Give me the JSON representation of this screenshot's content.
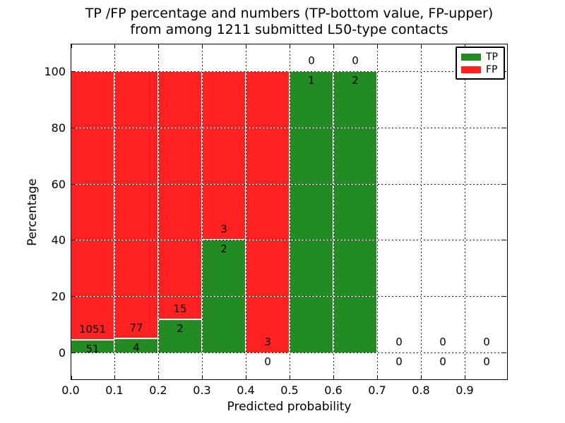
{
  "figure": {
    "title_line1": "TP /FP percentage and numbers (TP-bottom value, FP-upper)",
    "title_line2": "from among 1211 submitted L50-type contacts"
  },
  "chart_data": {
    "type": "bar",
    "stacked": true,
    "title": "TP /FP percentage and numbers (TP-bottom value, FP-upper) from among 1211 submitted L50-type contacts",
    "xlabel": "Predicted probability",
    "ylabel": "Percentage",
    "xlim": [
      0.0,
      1.0
    ],
    "ylim": [
      -10,
      110
    ],
    "grid": "dotted",
    "legend_position": "upper-right",
    "total_contacts": 1211,
    "bin_width": 0.1,
    "bin_starts": [
      0.0,
      0.1,
      0.2,
      0.3,
      0.4,
      0.5,
      0.6,
      0.7,
      0.8,
      0.9
    ],
    "xtick_labels": [
      "0.0",
      "0.1",
      "0.2",
      "0.3",
      "0.4",
      "0.5",
      "0.6",
      "0.7",
      "0.8",
      "0.9"
    ],
    "ytick_values": [
      0,
      20,
      40,
      60,
      80,
      100
    ],
    "series": [
      {
        "name": "TP",
        "color": "#228b22",
        "counts": [
          51,
          4,
          2,
          2,
          0,
          1,
          2,
          0,
          0,
          0
        ],
        "pct": [
          4.63,
          4.94,
          11.76,
          40,
          0,
          100,
          100,
          0,
          0,
          0
        ]
      },
      {
        "name": "FP",
        "color": "#ff2121",
        "counts": [
          1051,
          77,
          15,
          3,
          3,
          0,
          0,
          0,
          0,
          0
        ],
        "pct": [
          95.37,
          95.06,
          88.24,
          60,
          100,
          0,
          0,
          0,
          0,
          0
        ]
      }
    ]
  }
}
